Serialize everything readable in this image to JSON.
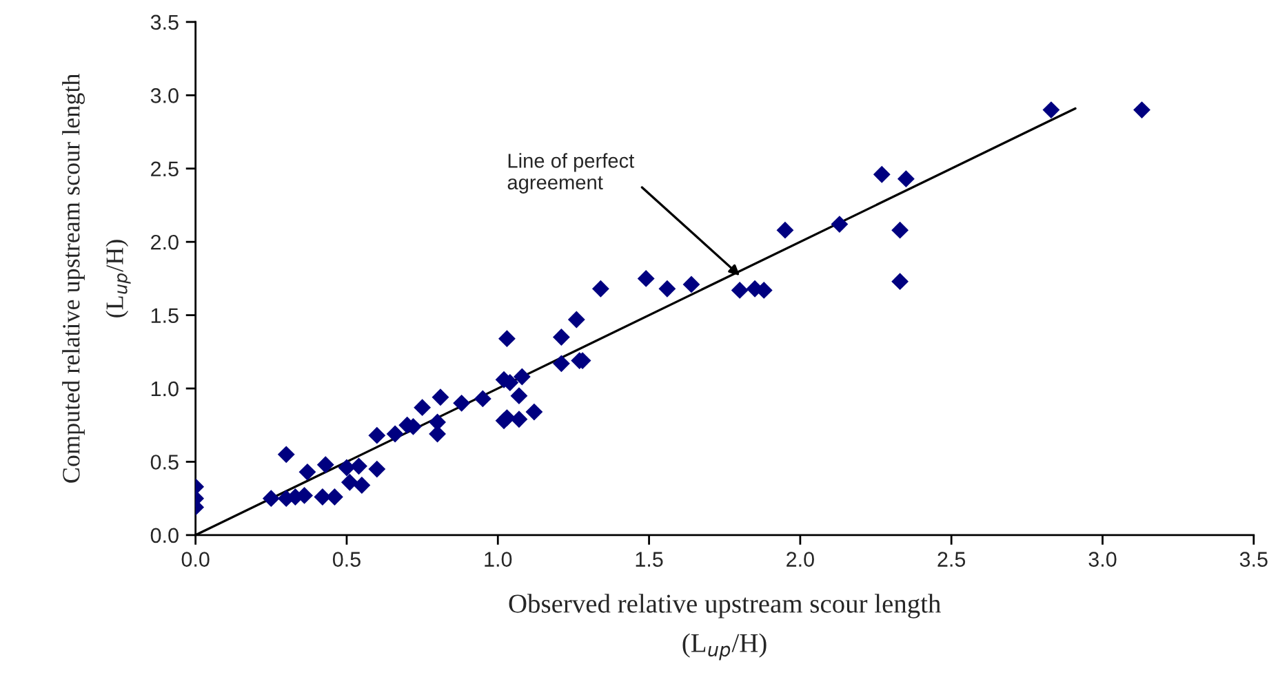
{
  "chart_data": {
    "type": "scatter",
    "xlabel": "Observed relative upstream scour length\n(L$_{up}$/H)",
    "ylabel": "Computed relative upstream scour length\n(L$_{up}$/H)",
    "xlim": [
      0,
      3.5
    ],
    "ylim": [
      0,
      3.5
    ],
    "xticks": [
      {
        "value": 0,
        "label": "0.0"
      },
      0.5,
      {
        "value": 1,
        "label": "1.0"
      },
      1.5,
      {
        "value": 2,
        "label": "2.0"
      },
      2.5,
      {
        "value": 3,
        "label": "3.0"
      },
      3.5
    ],
    "yticks": [
      {
        "value": 0,
        "label": "0.0"
      },
      0.5,
      {
        "value": 1,
        "label": "1.0"
      },
      1.5,
      {
        "value": 2,
        "label": "2.0"
      },
      2.5,
      {
        "value": 3,
        "label": "3.0"
      },
      3.5
    ],
    "grid": false,
    "legend": false,
    "marker": "diamond",
    "series": [
      {
        "color": "#000080",
        "x": [
          0,
          0,
          0,
          0.25,
          0.3,
          0.3,
          0.33,
          0.36,
          0.37,
          0.42,
          0.43,
          0.46,
          0.5,
          0.51,
          0.54,
          0.55,
          0.6,
          0.6,
          0.66,
          0.7,
          0.72,
          0.75,
          0.8,
          0.8,
          0.81,
          0.88,
          0.95,
          1.02,
          1.02,
          1.03,
          1.04,
          1.07,
          1.07,
          1.08,
          1.12,
          1.03,
          1.21,
          1.21,
          1.26,
          1.27,
          1.28,
          1.34,
          1.49,
          1.56,
          1.64,
          1.8,
          1.85,
          1.88,
          1.95,
          2.13,
          2.27,
          2.35,
          2.33,
          2.33,
          2.83,
          3.13
        ],
        "values": [
          0.33,
          0.25,
          0.19,
          0.25,
          0.55,
          0.25,
          0.26,
          0.27,
          0.43,
          0.26,
          0.48,
          0.26,
          0.46,
          0.36,
          0.47,
          0.34,
          0.45,
          0.68,
          0.69,
          0.75,
          0.74,
          0.87,
          0.77,
          0.69,
          0.94,
          0.9,
          0.93,
          1.06,
          0.78,
          0.8,
          1.04,
          0.79,
          0.95,
          1.08,
          0.84,
          1.34,
          1.35,
          1.17,
          1.47,
          1.19,
          1.19,
          1.68,
          1.75,
          1.68,
          1.71,
          1.67,
          1.68,
          1.67,
          2.08,
          2.12,
          2.46,
          2.43,
          2.08,
          1.73,
          2.9,
          2.9
        ]
      },
      {
        "type": "line",
        "color": "#000000",
        "marker": "none",
        "line_style": "solid",
        "x": [
          0,
          2.91
        ],
        "values": [
          0,
          2.91
        ]
      }
    ],
    "annotations": [
      {
        "text": "Line of perfect\nagreement",
        "x": 1.8,
        "y": 1.77
      }
    ]
  }
}
